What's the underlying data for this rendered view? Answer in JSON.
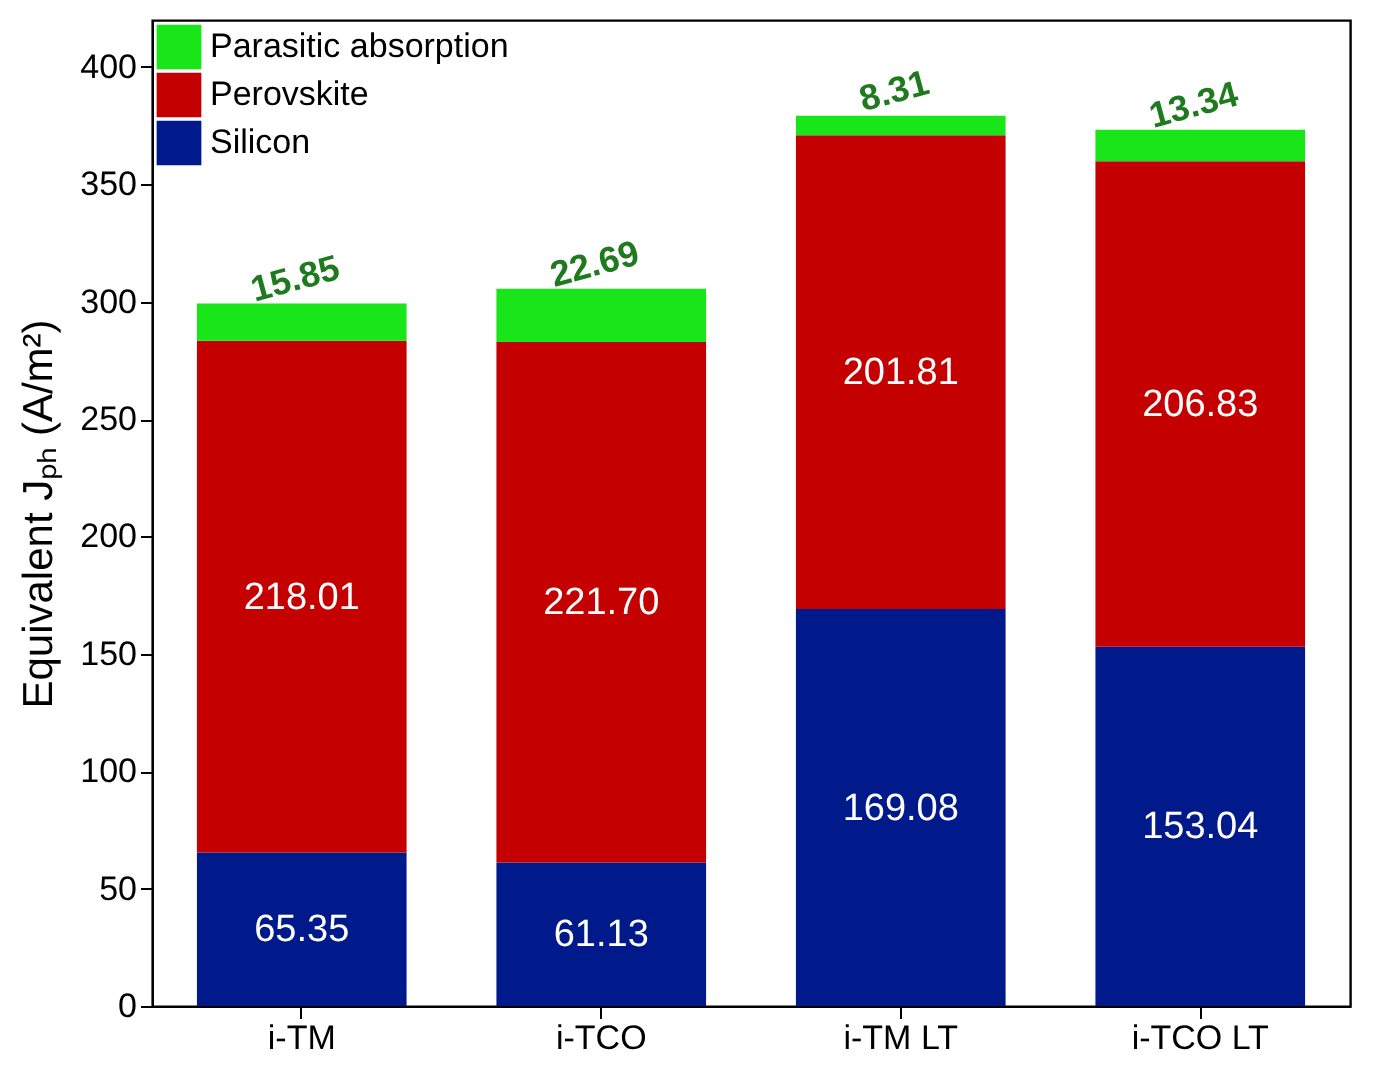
{
  "chart_data": {
    "type": "bar",
    "stacked": true,
    "ylabel": "Equivalent Jₚₕ (A/m²)",
    "categories": [
      "i-TM",
      "i-TCO",
      "i-TM LT",
      "i-TCO LT"
    ],
    "series": [
      {
        "name": "Silicon",
        "color": "#001a8c",
        "values": [
          65.35,
          61.13,
          169.08,
          153.04
        ],
        "value_labels": [
          "65.35",
          "61.13",
          "169.08",
          "153.04"
        ]
      },
      {
        "name": "Perovskite",
        "color": "#c40000",
        "values": [
          218.01,
          221.7,
          201.81,
          206.83
        ],
        "value_labels": [
          "218.01",
          "221.70",
          "201.81",
          "206.83"
        ]
      },
      {
        "name": "Parasitic absorption",
        "color": "#19e619",
        "values": [
          15.85,
          22.69,
          8.31,
          13.34
        ],
        "value_labels": [
          "15.85",
          "22.69",
          "8.31",
          "13.34"
        ]
      }
    ],
    "ylim": [
      0,
      420
    ],
    "yticks": [
      0,
      50,
      100,
      150,
      200,
      250,
      300,
      350,
      400
    ],
    "legend": "top left",
    "grid": false
  }
}
